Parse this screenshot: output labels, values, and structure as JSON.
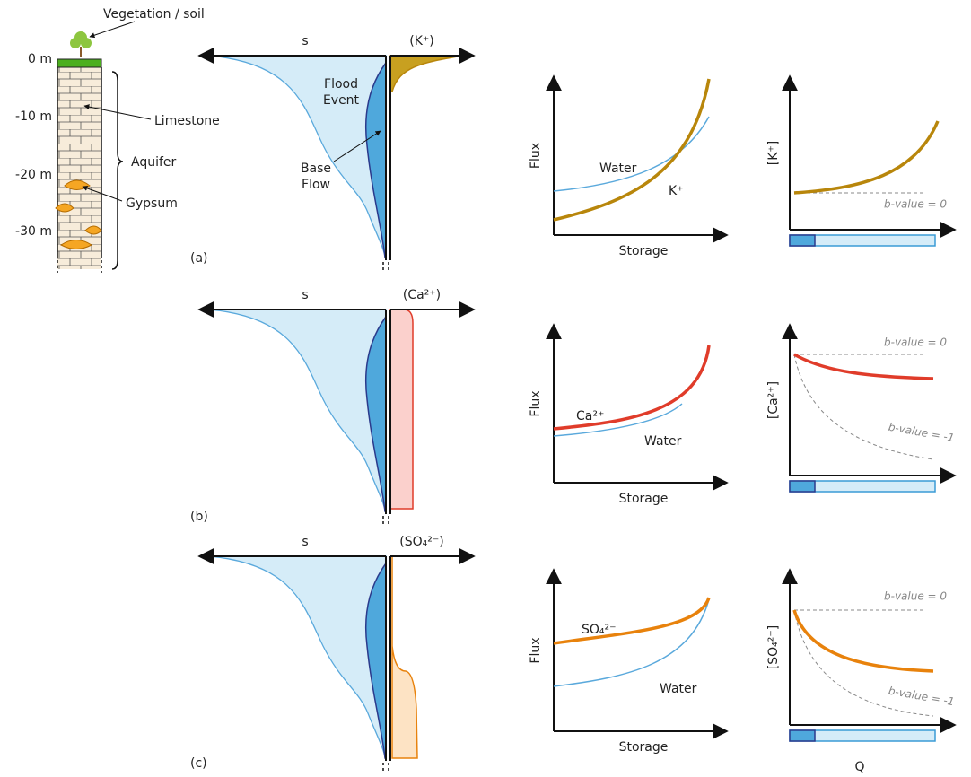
{
  "column": {
    "top_label": "Vegetation / soil",
    "depths": [
      "0 m",
      "-10 m",
      "-20 m",
      "-30 m"
    ],
    "limestone": "Limestone",
    "aquifer": "Aquifer",
    "gypsum": "Gypsum"
  },
  "panels": [
    {
      "label": "(a)",
      "s_axis": "s",
      "solute_axis": "(K⁺)",
      "flood_event": [
        "Flood",
        "Event"
      ],
      "base_flow": [
        "Base",
        "Flow"
      ],
      "flux_plot": {
        "y_label": "Flux",
        "x_label": "Storage",
        "water": "Water",
        "solute": "K⁺"
      },
      "conc_plot": {
        "y_label": "[K⁺]",
        "b_lines": [
          "b-value = 0"
        ]
      }
    },
    {
      "label": "(b)",
      "s_axis": "s",
      "solute_axis": "(Ca²⁺)",
      "flux_plot": {
        "y_label": "Flux",
        "x_label": "Storage",
        "water": "Water",
        "solute": "Ca²⁺"
      },
      "conc_plot": {
        "y_label": "[Ca²⁺]",
        "b_lines": [
          "b-value = 0",
          "b-value = -1"
        ]
      }
    },
    {
      "label": "(c)",
      "s_axis": "s",
      "solute_axis": "(SO₄²⁻)",
      "flux_plot": {
        "y_label": "Flux",
        "x_label": "Storage",
        "water": "Water",
        "solute": "SO₄²⁻"
      },
      "conc_plot": {
        "y_label": "[SO₄²⁻]",
        "b_lines": [
          "b-value = 0",
          "b-value = -1"
        ]
      }
    }
  ],
  "q_label": "Q"
}
